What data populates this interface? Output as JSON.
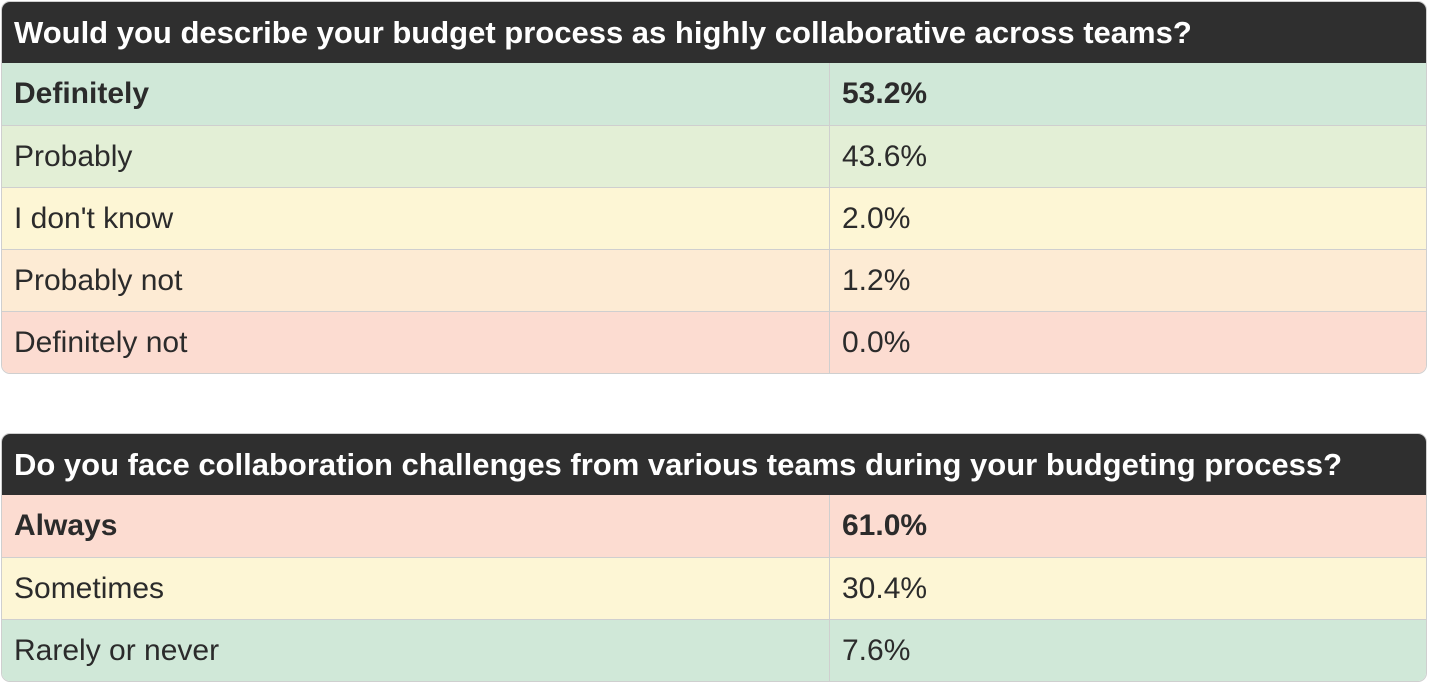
{
  "chart_data": [
    {
      "type": "table",
      "title": "Would you describe your budget process as highly collaborative across teams?",
      "rows": [
        {
          "label": "Definitely",
          "value": "53.2%",
          "color": "#d0e8d8",
          "highlight": true
        },
        {
          "label": "Probably",
          "value": "43.6%",
          "color": "#e3efd6",
          "highlight": false
        },
        {
          "label": "I don't know",
          "value": "2.0%",
          "color": "#fdf6d5",
          "highlight": false
        },
        {
          "label": "Probably not",
          "value": "1.2%",
          "color": "#fdebd4",
          "highlight": false
        },
        {
          "label": "Definitely not",
          "value": "0.0%",
          "color": "#fcdcd1",
          "highlight": false
        }
      ]
    },
    {
      "type": "table",
      "title": "Do you face collaboration challenges from various teams during your budgeting process?",
      "rows": [
        {
          "label": "Always",
          "value": "61.0%",
          "color": "#fcdcd1",
          "highlight": true
        },
        {
          "label": "Sometimes",
          "value": "30.4%",
          "color": "#fdf6d5",
          "highlight": false
        },
        {
          "label": "Rarely or never",
          "value": "7.6%",
          "color": "#d0e8d8",
          "highlight": false
        }
      ]
    }
  ]
}
